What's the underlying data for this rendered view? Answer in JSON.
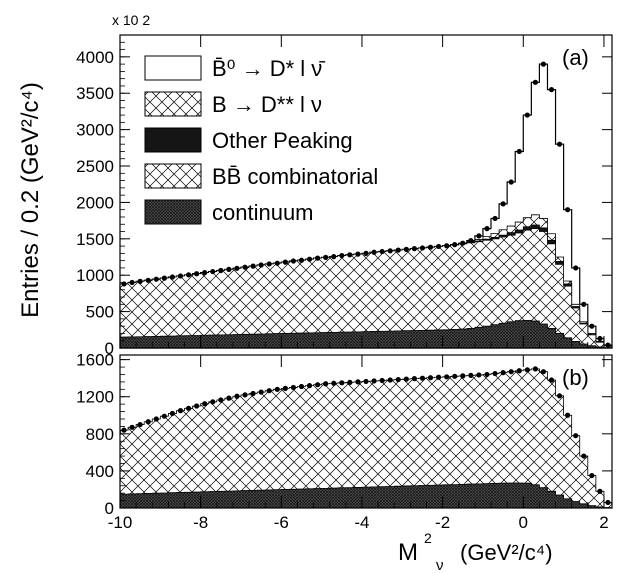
{
  "figure": {
    "ylabel": "Entries / 0.2 (GeV²/c⁴)",
    "xlabel_main": "M",
    "xlabel_sup": "2",
    "xlabel_sub": "ν",
    "xlabel_units": "(GeV²/c⁴)",
    "multiplier": "x 10 2"
  },
  "legend": [
    {
      "key": "dstar",
      "label": "B̄⁰ → D* l ν̄",
      "style": "open"
    },
    {
      "key": "dss",
      "label": "B → D** l ν",
      "style": "hatch"
    },
    {
      "key": "peak",
      "label": "Other Peaking",
      "style": "solid"
    },
    {
      "key": "bbbar",
      "label": "BB̄ combinatorial",
      "style": "hatch"
    },
    {
      "key": "cont",
      "label": "continuum",
      "style": "dense"
    }
  ],
  "chart_data": [
    {
      "type": "area",
      "panel_label": "(a)",
      "xlim": [
        -10,
        2.2
      ],
      "ylim": [
        0,
        4300
      ],
      "yticks": [
        0,
        500,
        1000,
        1500,
        2000,
        2500,
        3000,
        3500,
        4000
      ],
      "xticks": [
        -10,
        -8,
        -6,
        -4,
        -2,
        0,
        2
      ],
      "bin_width": 0.2,
      "x_start": -10,
      "series": [
        {
          "key": "cont",
          "values": [
            150,
            152,
            155,
            158,
            160,
            162,
            165,
            168,
            170,
            172,
            175,
            178,
            180,
            182,
            185,
            188,
            190,
            192,
            195,
            198,
            200,
            202,
            205,
            208,
            210,
            212,
            215,
            218,
            220,
            222,
            225,
            228,
            230,
            232,
            235,
            238,
            240,
            242,
            245,
            248,
            250,
            255,
            260,
            270,
            285,
            300,
            320,
            340,
            360,
            375,
            380,
            370,
            330,
            270,
            200,
            140,
            90,
            55,
            30,
            15,
            5
          ]
        },
        {
          "key": "bbbar",
          "values": [
            880,
            900,
            915,
            930,
            945,
            960,
            975,
            990,
            1005,
            1020,
            1035,
            1050,
            1065,
            1080,
            1095,
            1110,
            1125,
            1140,
            1155,
            1165,
            1180,
            1195,
            1205,
            1220,
            1235,
            1245,
            1255,
            1270,
            1280,
            1290,
            1300,
            1315,
            1325,
            1335,
            1345,
            1355,
            1365,
            1375,
            1385,
            1395,
            1405,
            1415,
            1430,
            1445,
            1460,
            1480,
            1500,
            1525,
            1550,
            1580,
            1620,
            1640,
            1600,
            1430,
            1150,
            850,
            550,
            330,
            180,
            80,
            30
          ]
        },
        {
          "key": "peak",
          "values": [
            880,
            900,
            915,
            930,
            945,
            960,
            975,
            990,
            1005,
            1020,
            1035,
            1050,
            1065,
            1080,
            1095,
            1110,
            1125,
            1140,
            1155,
            1165,
            1180,
            1195,
            1205,
            1220,
            1235,
            1245,
            1255,
            1270,
            1280,
            1290,
            1300,
            1315,
            1325,
            1335,
            1345,
            1355,
            1365,
            1375,
            1385,
            1395,
            1405,
            1415,
            1430,
            1450,
            1470,
            1495,
            1520,
            1550,
            1585,
            1620,
            1665,
            1690,
            1650,
            1480,
            1190,
            880,
            570,
            340,
            185,
            82,
            31
          ]
        },
        {
          "key": "dss",
          "values": [
            880,
            900,
            915,
            930,
            945,
            960,
            975,
            990,
            1005,
            1020,
            1035,
            1050,
            1065,
            1080,
            1095,
            1110,
            1125,
            1140,
            1155,
            1165,
            1180,
            1195,
            1205,
            1220,
            1235,
            1245,
            1255,
            1270,
            1280,
            1290,
            1300,
            1315,
            1325,
            1335,
            1345,
            1355,
            1365,
            1375,
            1385,
            1395,
            1405,
            1418,
            1435,
            1460,
            1490,
            1530,
            1575,
            1625,
            1675,
            1730,
            1790,
            1830,
            1780,
            1570,
            1250,
            920,
            600,
            360,
            200,
            90,
            35
          ]
        },
        {
          "key": "dstar",
          "values": [
            880,
            900,
            915,
            930,
            945,
            960,
            975,
            990,
            1005,
            1020,
            1035,
            1050,
            1065,
            1080,
            1095,
            1110,
            1125,
            1140,
            1155,
            1165,
            1180,
            1195,
            1205,
            1220,
            1235,
            1245,
            1255,
            1270,
            1280,
            1290,
            1300,
            1315,
            1325,
            1335,
            1345,
            1355,
            1365,
            1375,
            1385,
            1395,
            1405,
            1420,
            1440,
            1475,
            1540,
            1640,
            1780,
            1980,
            2280,
            2700,
            3200,
            3650,
            3900,
            3550,
            2800,
            1900,
            1100,
            600,
            300,
            130,
            40
          ]
        }
      ]
    },
    {
      "type": "area",
      "panel_label": "(b)",
      "xlim": [
        -10,
        2.2
      ],
      "ylim": [
        0,
        1650
      ],
      "yticks": [
        0,
        400,
        800,
        1200,
        1600
      ],
      "xticks": [
        -10,
        -8,
        -6,
        -4,
        -2,
        0,
        2
      ],
      "bin_width": 0.2,
      "x_start": -10,
      "series": [
        {
          "key": "cont",
          "values": [
            150,
            152,
            155,
            158,
            160,
            162,
            165,
            168,
            170,
            172,
            175,
            178,
            180,
            182,
            185,
            188,
            190,
            192,
            195,
            198,
            200,
            202,
            205,
            208,
            210,
            212,
            215,
            218,
            220,
            222,
            225,
            228,
            230,
            232,
            235,
            238,
            240,
            242,
            245,
            248,
            250,
            252,
            255,
            258,
            260,
            262,
            265,
            268,
            270,
            270,
            268,
            250,
            220,
            180,
            140,
            100,
            70,
            45,
            25,
            12,
            5
          ]
        },
        {
          "key": "bbbar",
          "values": [
            840,
            870,
            900,
            930,
            960,
            990,
            1020,
            1050,
            1075,
            1100,
            1125,
            1145,
            1165,
            1185,
            1205,
            1220,
            1235,
            1250,
            1265,
            1280,
            1290,
            1300,
            1310,
            1320,
            1330,
            1340,
            1345,
            1350,
            1355,
            1360,
            1365,
            1370,
            1375,
            1380,
            1385,
            1390,
            1395,
            1400,
            1405,
            1410,
            1415,
            1420,
            1425,
            1430,
            1435,
            1440,
            1450,
            1460,
            1470,
            1480,
            1490,
            1500,
            1470,
            1380,
            1210,
            1000,
            780,
            560,
            350,
            180,
            60
          ]
        }
      ]
    }
  ]
}
